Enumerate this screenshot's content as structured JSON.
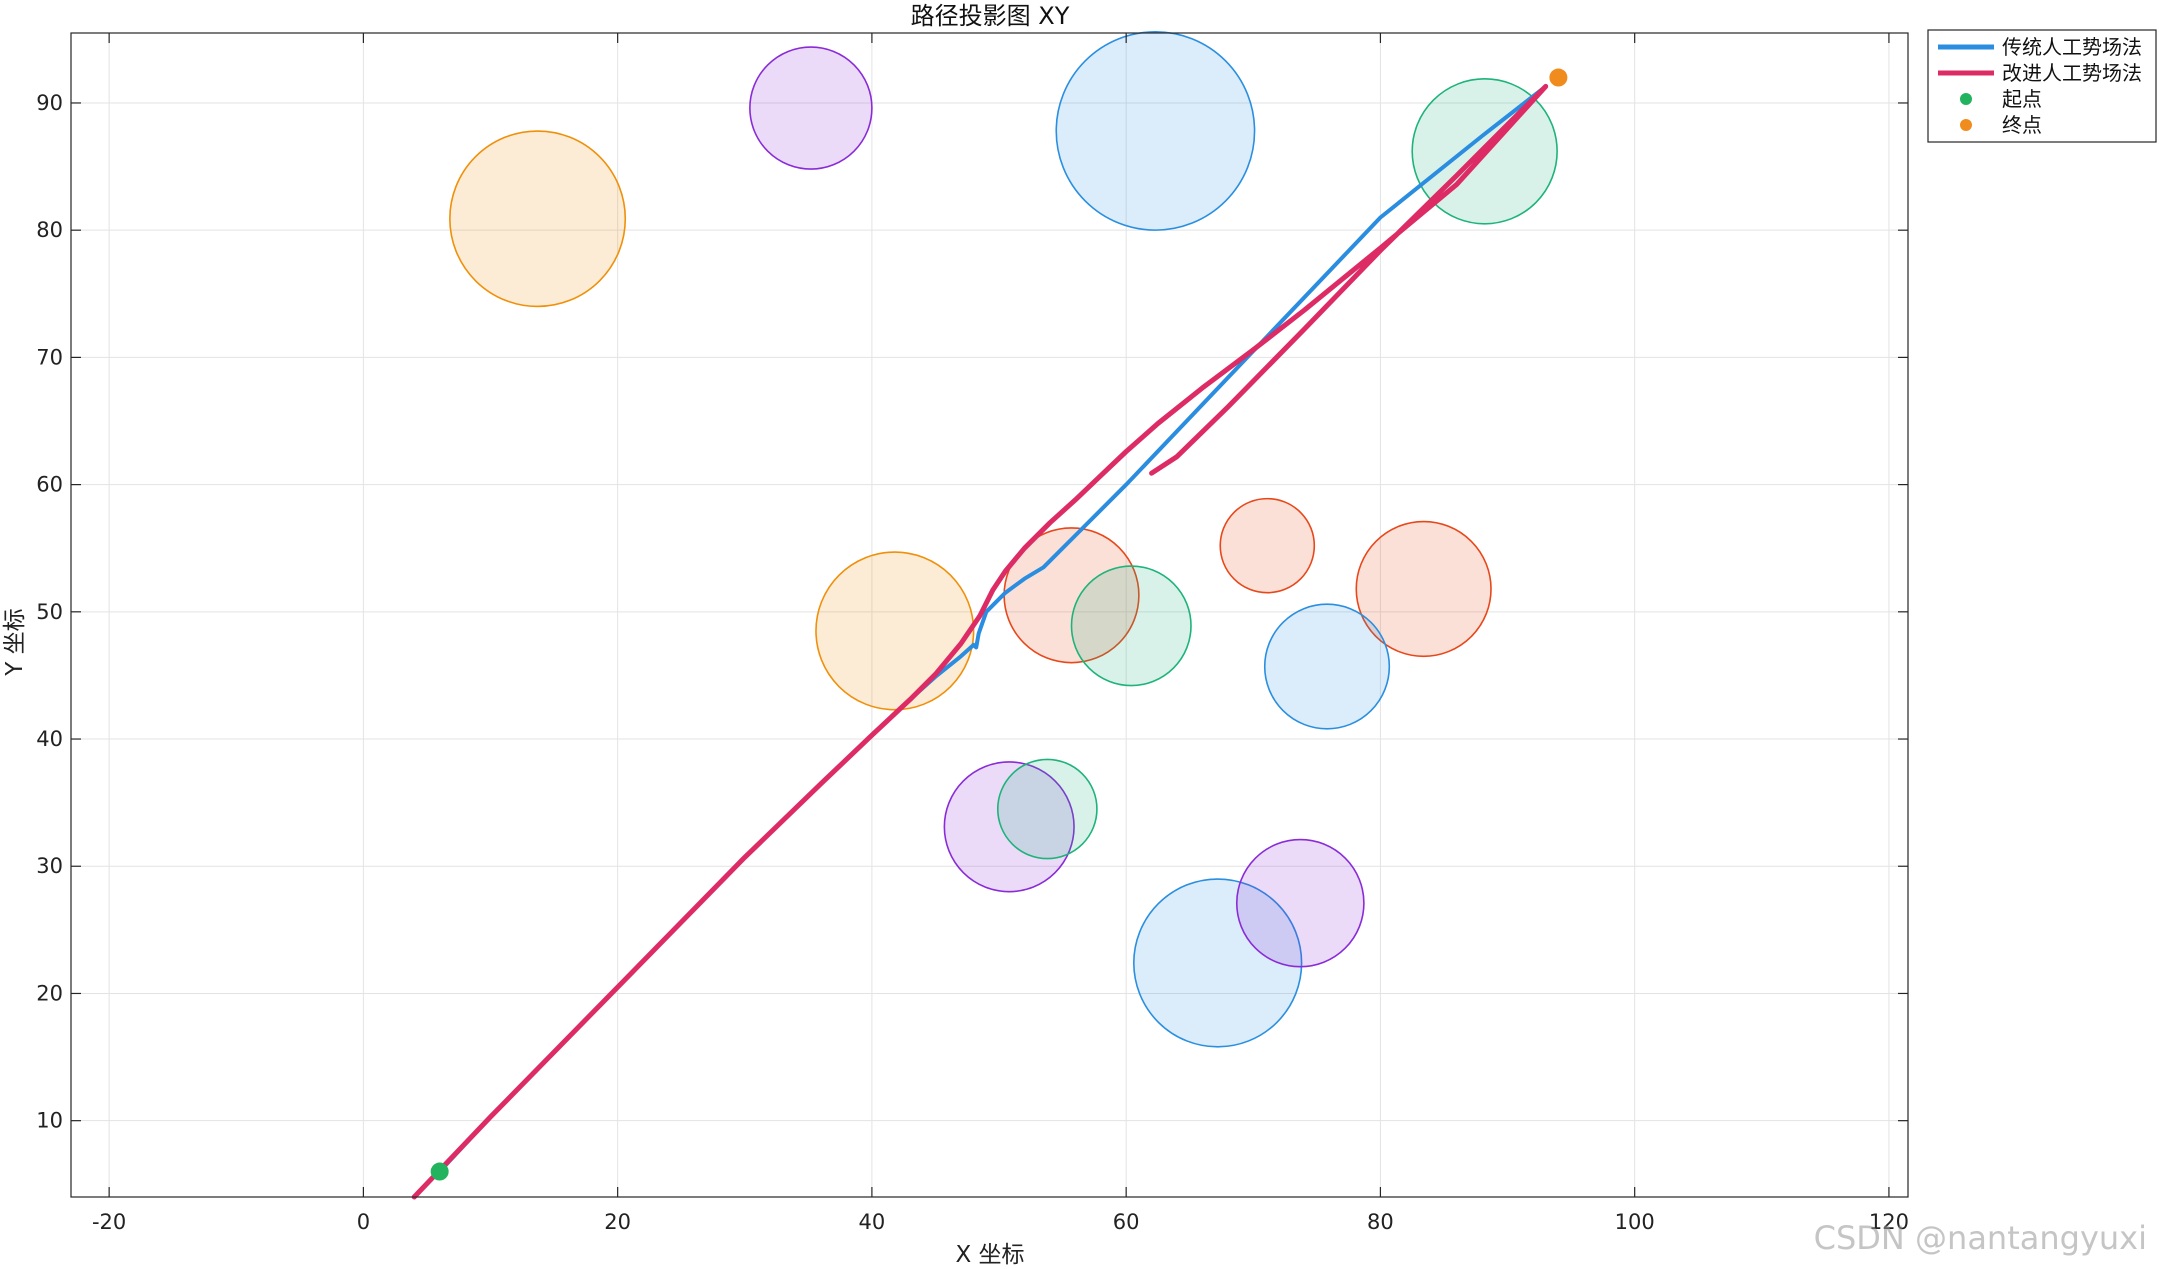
{
  "watermark": "CSDN @nantangyuxi",
  "chart_data": {
    "type": "line",
    "title": "路径投影图 XY",
    "xlabel": "X 坐标",
    "ylabel": "Y 坐标",
    "xlim": [
      -23,
      121.5
    ],
    "ylim": [
      4,
      95.5
    ],
    "xticks": [
      -20,
      0,
      20,
      40,
      60,
      80,
      100,
      120
    ],
    "yticks": [
      10,
      20,
      30,
      40,
      50,
      60,
      70,
      80,
      90
    ],
    "grid": true,
    "legend_position": "outside-top-right",
    "obstacles": [
      {
        "cx": 13.7,
        "cy": 80.9,
        "r": 6.9,
        "color": "#f0900a"
      },
      {
        "cx": 35.2,
        "cy": 89.6,
        "r": 4.8,
        "color": "#8a2bd8"
      },
      {
        "cx": 62.3,
        "cy": 87.8,
        "r": 7.8,
        "color": "#2a8fe0"
      },
      {
        "cx": 88.2,
        "cy": 86.2,
        "r": 5.7,
        "color": "#1db37a"
      },
      {
        "cx": 41.8,
        "cy": 48.5,
        "r": 6.2,
        "color": "#f0900a"
      },
      {
        "cx": 55.7,
        "cy": 51.3,
        "r": 5.3,
        "color": "#e8471a"
      },
      {
        "cx": 60.4,
        "cy": 48.9,
        "r": 4.7,
        "color": "#1db37a"
      },
      {
        "cx": 71.1,
        "cy": 55.2,
        "r": 3.7,
        "color": "#e8471a"
      },
      {
        "cx": 83.4,
        "cy": 51.8,
        "r": 5.3,
        "color": "#e8471a"
      },
      {
        "cx": 75.8,
        "cy": 45.7,
        "r": 4.9,
        "color": "#2a8fe0"
      },
      {
        "cx": 50.8,
        "cy": 33.1,
        "r": 5.1,
        "color": "#8a2bd8"
      },
      {
        "cx": 53.8,
        "cy": 34.5,
        "r": 3.9,
        "color": "#1db37a"
      },
      {
        "cx": 67.2,
        "cy": 22.4,
        "r": 6.6,
        "color": "#2a8fe0"
      },
      {
        "cx": 73.7,
        "cy": 27.1,
        "r": 5.0,
        "color": "#8a2bd8"
      }
    ],
    "series": [
      {
        "name": "传统人工势场法",
        "color": "#2a8de0",
        "x": [
          6,
          10,
          20,
          30,
          36,
          40,
          43,
          45,
          47,
          48,
          48.2,
          48.4,
          49,
          50.5,
          52,
          53.5,
          56,
          60,
          70,
          80,
          88,
          93
        ],
        "y": [
          6,
          10.3,
          20.5,
          30.7,
          36.5,
          40.3,
          43.1,
          44.9,
          46.5,
          47.4,
          47.2,
          48.3,
          50,
          51.5,
          52.6,
          53.5,
          56,
          60,
          70.5,
          81,
          87.4,
          91.3
        ]
      },
      {
        "name": "改进人工势场法",
        "color": "#dc2b65",
        "x": [
          4,
          10,
          20,
          30,
          36,
          40,
          43,
          45,
          47,
          48.5,
          49.5,
          50.5,
          52,
          54,
          56,
          58,
          60,
          62.5,
          66,
          70,
          74,
          80,
          86,
          93,
          90,
          86,
          80,
          74,
          68,
          64,
          62
        ],
        "y": [
          4,
          10.3,
          20.5,
          30.7,
          36.5,
          40.3,
          43.1,
          45.1,
          47.5,
          49.7,
          51.7,
          53.2,
          55,
          57,
          58.8,
          60.7,
          62.6,
          64.8,
          67.6,
          70.6,
          73.7,
          78.6,
          83.6,
          91.3,
          88.3,
          84.3,
          78.4,
          72.2,
          66.1,
          62.2,
          60.9
        ]
      }
    ],
    "start": {
      "name": "起点",
      "x": 6,
      "y": 6,
      "color": "#22b35e"
    },
    "end": {
      "name": "终点",
      "x": 94,
      "y": 92,
      "color": "#f08c1e"
    }
  }
}
